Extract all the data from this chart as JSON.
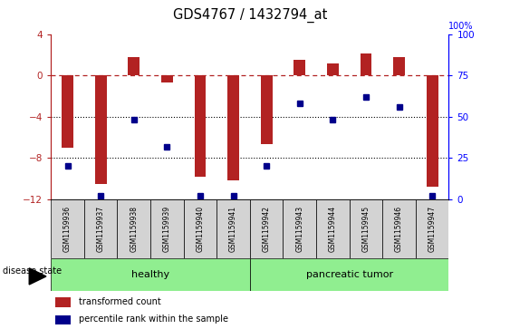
{
  "title": "GDS4767 / 1432794_at",
  "samples": [
    "GSM1159936",
    "GSM1159937",
    "GSM1159938",
    "GSM1159939",
    "GSM1159940",
    "GSM1159941",
    "GSM1159942",
    "GSM1159943",
    "GSM1159944",
    "GSM1159945",
    "GSM1159946",
    "GSM1159947"
  ],
  "transformed_count": [
    -7.0,
    -10.5,
    1.8,
    -0.7,
    -9.8,
    -10.2,
    -6.7,
    1.5,
    1.2,
    2.2,
    1.8,
    -10.8
  ],
  "percentile_rank": [
    20,
    2,
    48,
    32,
    2,
    2,
    20,
    58,
    48,
    62,
    56,
    2
  ],
  "bar_color": "#b22222",
  "dot_color": "#00008b",
  "healthy_label": "healthy",
  "tumor_label": "pancreatic tumor",
  "disease_state_label": "disease state",
  "legend_bar_label": "transformed count",
  "legend_dot_label": "percentile rank within the sample",
  "ylim_left": [
    -12,
    4
  ],
  "ylim_right": [
    0,
    100
  ],
  "yticks_left": [
    -12,
    -8,
    -4,
    0,
    4
  ],
  "yticks_right": [
    0,
    25,
    50,
    75,
    100
  ],
  "dotted_hlines": [
    -4,
    -8
  ],
  "healthy_color": "#90ee90",
  "tumor_color": "#90ee90",
  "label_area_color": "#d3d3d3",
  "n_healthy": 6,
  "n_total": 12
}
